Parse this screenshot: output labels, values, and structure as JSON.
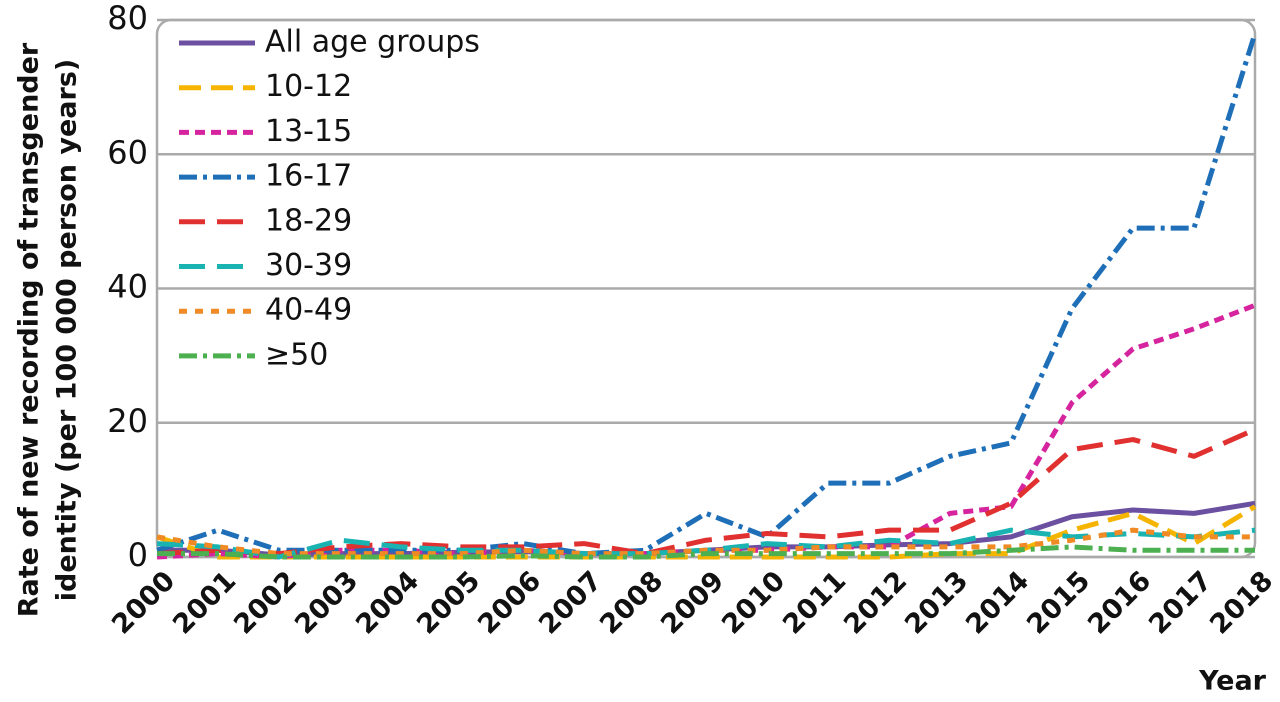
{
  "chart_data": {
    "type": "line",
    "y_label": [
      "Rate of new recording of transgender",
      "identity (per 100 000 person years)"
    ],
    "x_label": "Year",
    "categories": [
      "2000",
      "2001",
      "2002",
      "2003",
      "2004",
      "2005",
      "2006",
      "2007",
      "2008",
      "2009",
      "2010",
      "2011",
      "2012",
      "2013",
      "2014",
      "2015",
      "2016",
      "2017",
      "2018"
    ],
    "series": [
      {
        "name": "All age groups",
        "color": "#6b4fa0",
        "dash": "solid",
        "values": [
          1,
          1,
          0.3,
          0.5,
          0.5,
          0.7,
          0.8,
          0.5,
          0.5,
          1,
          1.5,
          1.5,
          1.8,
          2,
          3,
          6,
          7,
          6.5,
          8
        ]
      },
      {
        "name": "10-12",
        "color": "#f5b400",
        "dash": "dashed",
        "values": [
          3,
          0,
          0,
          0,
          0,
          0,
          0,
          0,
          0,
          0,
          0,
          0,
          0,
          0.5,
          0.5,
          4,
          6.5,
          2,
          7.5
        ]
      },
      {
        "name": "13-15",
        "color": "#d6249f",
        "dash": "short-dashed",
        "values": [
          0,
          0.5,
          0,
          1,
          1,
          0.5,
          1,
          0.5,
          0.5,
          1,
          1,
          1.5,
          1.5,
          6.5,
          7.5,
          23,
          31,
          34,
          37.5
        ]
      },
      {
        "name": "16-17",
        "color": "#1f6fb8",
        "dash": "dash-dot",
        "values": [
          1,
          4,
          1,
          1,
          1,
          1,
          2,
          0.5,
          1,
          6.5,
          3,
          11,
          11,
          15,
          17,
          37,
          49,
          49,
          78
        ]
      },
      {
        "name": "18-29",
        "color": "#e03030",
        "dash": "long-dashed",
        "values": [
          0.5,
          1,
          0.5,
          1.5,
          2,
          1.5,
          1.5,
          2,
          0.5,
          2.5,
          3.5,
          3,
          4,
          4,
          8,
          16,
          17.5,
          15,
          19
        ]
      },
      {
        "name": "30-39",
        "color": "#19b3b1",
        "dash": "long-dashed",
        "values": [
          2,
          1.5,
          0,
          2.5,
          1.5,
          1,
          1,
          0.5,
          0.5,
          1,
          2,
          1.5,
          2.5,
          2,
          4,
          3,
          3.5,
          3,
          4
        ]
      },
      {
        "name": "40-49",
        "color": "#f08a24",
        "dash": "dotted",
        "values": [
          3,
          1.5,
          0.5,
          0.5,
          0.5,
          0.5,
          1,
          0.5,
          0.5,
          1,
          1,
          1.5,
          1.5,
          1.5,
          1.5,
          2.5,
          4,
          3,
          3
        ]
      },
      {
        "name": "≥50",
        "color": "#4caf50",
        "dash": "dash-dot",
        "values": [
          0.5,
          0.5,
          0,
          0,
          0,
          0,
          0.2,
          0,
          0,
          0.5,
          0.5,
          0.5,
          0.5,
          0.5,
          1,
          1.5,
          1,
          1,
          1
        ]
      }
    ],
    "ylim": [
      0,
      80
    ],
    "yticks": [
      0,
      20,
      40,
      60,
      80
    ],
    "grid": true,
    "legend": "top-left"
  }
}
